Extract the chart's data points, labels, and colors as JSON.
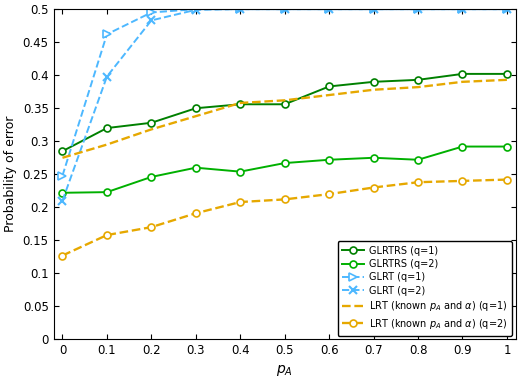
{
  "pA": [
    0,
    0.1,
    0.2,
    0.3,
    0.4,
    0.5,
    0.6,
    0.7,
    0.8,
    0.9,
    1.0
  ],
  "GLRTRS_q1": [
    0.285,
    0.32,
    0.328,
    0.35,
    0.356,
    0.356,
    0.383,
    0.39,
    0.393,
    0.402,
    0.402
  ],
  "GLRTRS_q2": [
    0.222,
    0.223,
    0.246,
    0.26,
    0.254,
    0.267,
    0.272,
    0.275,
    0.272,
    0.292,
    0.292
  ],
  "GLRT_q1": [
    0.248,
    0.462,
    0.495,
    0.5,
    0.5,
    0.5,
    0.5,
    0.5,
    0.5,
    0.5,
    0.5
  ],
  "GLRT_q2": [
    0.21,
    0.398,
    0.483,
    0.499,
    0.5,
    0.5,
    0.5,
    0.5,
    0.5,
    0.5,
    0.5
  ],
  "LRT_known_q1": [
    0.275,
    0.295,
    0.318,
    0.338,
    0.358,
    0.362,
    0.37,
    0.378,
    0.382,
    0.39,
    0.393
  ],
  "LRT_known_q2": [
    0.127,
    0.158,
    0.17,
    0.191,
    0.208,
    0.212,
    0.22,
    0.23,
    0.238,
    0.24,
    0.242
  ],
  "color_green_dark": "#008000",
  "color_green_light": "#00b000",
  "color_blue": "#4db8ff",
  "color_orange": "#e6a800",
  "ylabel": "Probability of error",
  "xlim": [
    -0.02,
    1.02
  ],
  "ylim": [
    0,
    0.5
  ],
  "yticks": [
    0,
    0.05,
    0.1,
    0.15,
    0.2,
    0.25,
    0.3,
    0.35,
    0.4,
    0.45,
    0.5
  ],
  "xticks": [
    0,
    0.1,
    0.2,
    0.3,
    0.4,
    0.5,
    0.6,
    0.7,
    0.8,
    0.9,
    1
  ]
}
